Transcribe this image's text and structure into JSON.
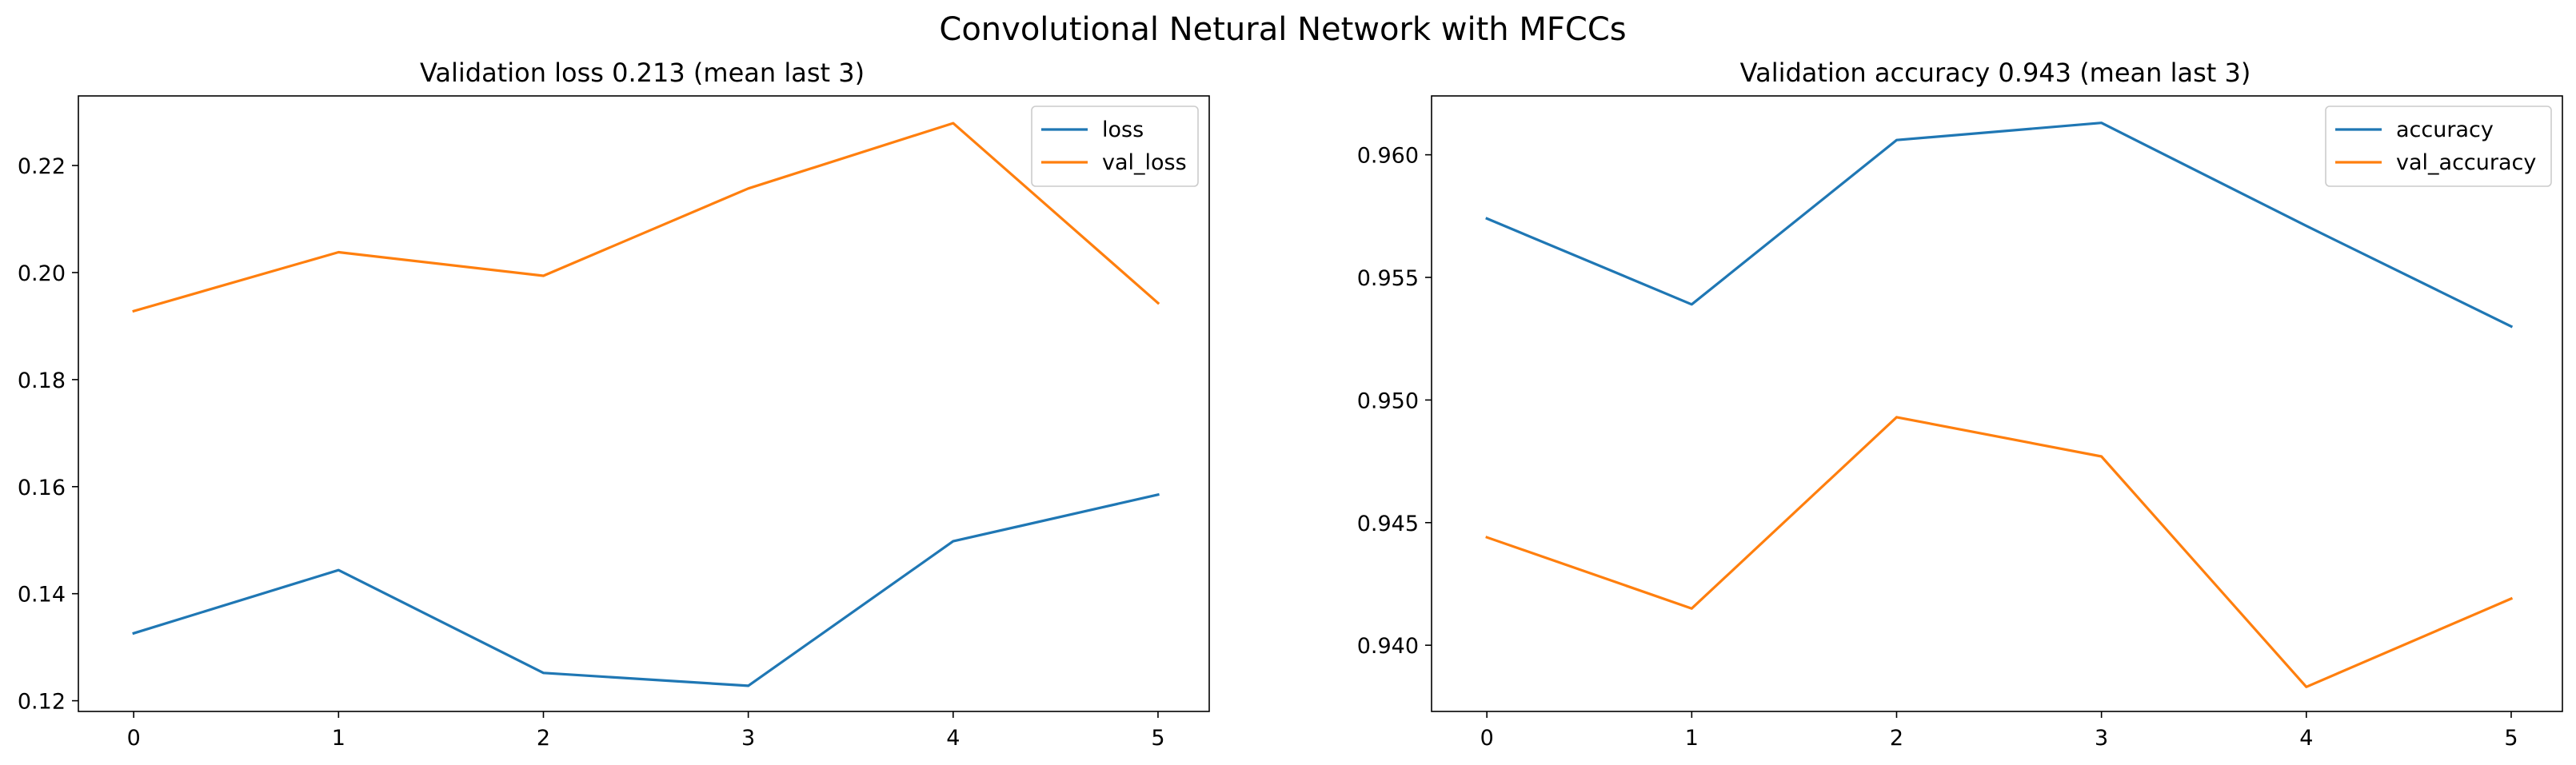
{
  "figure_title": "Convolutional Netural Network with MFCCs",
  "colors": {
    "series_1": "#1f77b4",
    "series_2": "#ff7f0e",
    "axes": "#000000",
    "legend_border": "#cccccc"
  },
  "chart_data": [
    {
      "type": "line",
      "title": "Validation loss 0.213 (mean last 3)",
      "xlabel": "",
      "ylabel": "",
      "x": [
        0,
        1,
        2,
        3,
        4,
        5
      ],
      "xticks": [
        "0",
        "1",
        "2",
        "3",
        "4",
        "5"
      ],
      "xlim": [
        -0.27,
        5.25
      ],
      "ylim": [
        0.118,
        0.233
      ],
      "yticks": [
        "0.12",
        "0.14",
        "0.16",
        "0.18",
        "0.20",
        "0.22"
      ],
      "grid": false,
      "legend_position": "upper right",
      "series": [
        {
          "name": "loss",
          "color": "#1f77b4",
          "values": [
            0.1326,
            0.1444,
            0.1252,
            0.1228,
            0.1498,
            0.1585
          ]
        },
        {
          "name": "val_loss",
          "color": "#ff7f0e",
          "values": [
            0.1928,
            0.2038,
            0.1994,
            0.2157,
            0.2279,
            0.1943
          ]
        }
      ]
    },
    {
      "type": "line",
      "title": "Validation accuracy 0.943 (mean last 3)",
      "xlabel": "",
      "ylabel": "",
      "x": [
        0,
        1,
        2,
        3,
        4,
        5
      ],
      "xticks": [
        "0",
        "1",
        "2",
        "3",
        "4",
        "5"
      ],
      "xlim": [
        -0.27,
        5.25
      ],
      "ylim": [
        0.9373,
        0.9624
      ],
      "yticks": [
        "0.940",
        "0.945",
        "0.950",
        "0.955",
        "0.960"
      ],
      "grid": false,
      "legend_position": "upper right",
      "series": [
        {
          "name": "accuracy",
          "color": "#1f77b4",
          "values": [
            0.9574,
            0.9539,
            0.9606,
            0.9613,
            0.9571,
            0.953
          ]
        },
        {
          "name": "val_accuracy",
          "color": "#ff7f0e",
          "values": [
            0.9444,
            0.9415,
            0.9493,
            0.9477,
            0.9383,
            0.9419
          ]
        }
      ]
    }
  ]
}
